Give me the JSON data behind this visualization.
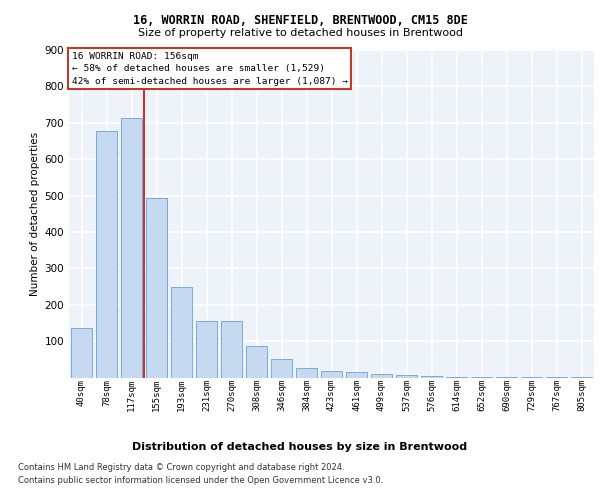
{
  "title1": "16, WORRIN ROAD, SHENFIELD, BRENTWOOD, CM15 8DE",
  "title2": "Size of property relative to detached houses in Brentwood",
  "xlabel": "Distribution of detached houses by size in Brentwood",
  "ylabel": "Number of detached properties",
  "categories": [
    "40sqm",
    "78sqm",
    "117sqm",
    "155sqm",
    "193sqm",
    "231sqm",
    "270sqm",
    "308sqm",
    "346sqm",
    "384sqm",
    "423sqm",
    "461sqm",
    "499sqm",
    "537sqm",
    "576sqm",
    "614sqm",
    "652sqm",
    "690sqm",
    "729sqm",
    "767sqm",
    "805sqm"
  ],
  "values": [
    135,
    678,
    712,
    493,
    250,
    155,
    155,
    86,
    50,
    26,
    18,
    14,
    10,
    8,
    3,
    2,
    1,
    1,
    1,
    1,
    1
  ],
  "bar_color": "#c5d9f0",
  "bar_edge_color": "#7aabdb",
  "marker_line_color": "#c0392b",
  "annotation_text": "16 WORRIN ROAD: 156sqm\n← 58% of detached houses are smaller (1,529)\n42% of semi-detached houses are larger (1,087) →",
  "annotation_box_color": "#ffffff",
  "annotation_box_edge_color": "#c0392b",
  "ylim": [
    0,
    900
  ],
  "yticks": [
    0,
    100,
    200,
    300,
    400,
    500,
    600,
    700,
    800,
    900
  ],
  "footer1": "Contains HM Land Registry data © Crown copyright and database right 2024.",
  "footer2": "Contains public sector information licensed under the Open Government Licence v3.0.",
  "bg_color": "#eef2f9",
  "grid_color": "#ffffff"
}
